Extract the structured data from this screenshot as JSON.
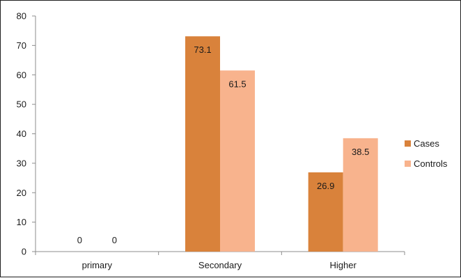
{
  "chart_data": {
    "type": "bar",
    "categories": [
      "primary",
      "Secondary",
      "Higher"
    ],
    "series": [
      {
        "name": "Cases",
        "values": [
          0,
          73.1,
          26.9
        ],
        "labels": [
          "0",
          "73.1",
          "26.9"
        ],
        "color": "#d9823b"
      },
      {
        "name": "Controls",
        "values": [
          0,
          61.5,
          38.5
        ],
        "labels": [
          "0",
          "61.5",
          "38.5"
        ],
        "color": "#f8b38d"
      }
    ],
    "ylim": [
      0,
      80
    ],
    "yticks": [
      0,
      10,
      20,
      30,
      40,
      50,
      60,
      70,
      80
    ],
    "grid": false,
    "legend": "right"
  }
}
